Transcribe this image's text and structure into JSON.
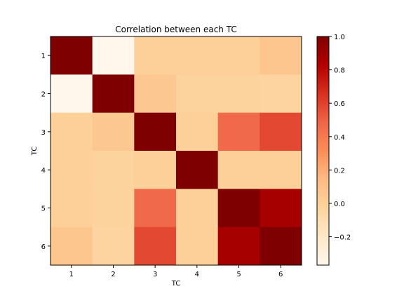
{
  "chart_data": {
    "type": "heatmap",
    "title": "Correlation between each TC",
    "xlabel": "TC",
    "ylabel": "TC",
    "x_categories": [
      "1",
      "2",
      "3",
      "4",
      "5",
      "6"
    ],
    "y_categories": [
      "1",
      "2",
      "3",
      "4",
      "5",
      "6"
    ],
    "values": [
      [
        1.0,
        -0.37,
        0.0,
        0.0,
        0.0,
        0.07
      ],
      [
        -0.37,
        1.0,
        0.06,
        -0.02,
        -0.02,
        -0.03
      ],
      [
        0.0,
        0.06,
        1.0,
        0.0,
        0.47,
        0.58
      ],
      [
        0.0,
        -0.02,
        0.0,
        1.0,
        0.0,
        0.0
      ],
      [
        0.0,
        -0.02,
        0.47,
        0.0,
        1.0,
        0.87
      ],
      [
        0.07,
        -0.03,
        0.58,
        0.0,
        0.87,
        1.0
      ]
    ],
    "colormap": "OrRd",
    "color_range": [
      -0.37,
      1.0
    ],
    "colorbar_ticks": [
      "−0.2",
      "0.0",
      "0.2",
      "0.4",
      "0.6",
      "0.8",
      "1.0"
    ],
    "colorbar_tick_values": [
      -0.2,
      0.0,
      0.2,
      0.4,
      0.6,
      0.8,
      1.0
    ],
    "grid": false,
    "legend": "colorbar-right"
  }
}
